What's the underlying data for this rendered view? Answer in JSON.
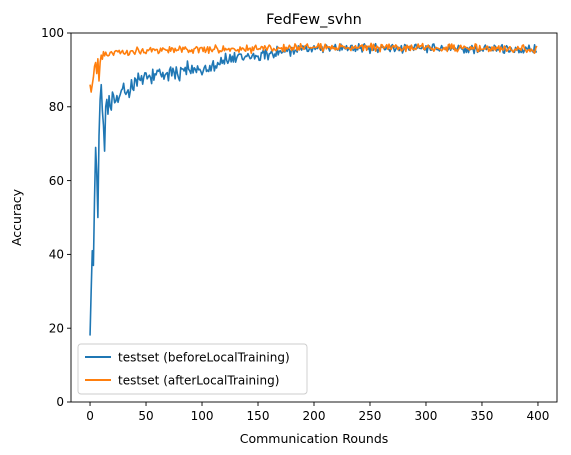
{
  "chart_data": {
    "type": "line",
    "title": "FedFew_svhn",
    "xlabel": "Communication Rounds",
    "ylabel": "Accuracy",
    "xlim": [
      -17,
      417
    ],
    "ylim": [
      0,
      100
    ],
    "xticks": [
      0,
      50,
      100,
      150,
      200,
      250,
      300,
      350,
      400
    ],
    "yticks": [
      0,
      20,
      40,
      60,
      80,
      100
    ],
    "grid": false,
    "legend_position": "lower-left",
    "rounds": 400,
    "series": [
      {
        "name": "testset (beforeLocalTraining)",
        "color": "#1f77b4",
        "anchors": [
          [
            0,
            18
          ],
          [
            1,
            30
          ],
          [
            2,
            41
          ],
          [
            3,
            37
          ],
          [
            4,
            55
          ],
          [
            5,
            69
          ],
          [
            6,
            62
          ],
          [
            7,
            50
          ],
          [
            8,
            72
          ],
          [
            9,
            82
          ],
          [
            10,
            86
          ],
          [
            11,
            79
          ],
          [
            12,
            75
          ],
          [
            13,
            68
          ],
          [
            14,
            80
          ],
          [
            15,
            82
          ],
          [
            16,
            78
          ],
          [
            17,
            83
          ],
          [
            18,
            80
          ],
          [
            20,
            84
          ],
          [
            22,
            81
          ],
          [
            25,
            82
          ],
          [
            30,
            84
          ],
          [
            35,
            85
          ],
          [
            40,
            86
          ],
          [
            45,
            87
          ],
          [
            50,
            88
          ],
          [
            60,
            88
          ],
          [
            70,
            89
          ],
          [
            80,
            89
          ],
          [
            90,
            90
          ],
          [
            100,
            90.5
          ],
          [
            110,
            91.5
          ],
          [
            120,
            92.5
          ],
          [
            130,
            93
          ],
          [
            140,
            93.5
          ],
          [
            150,
            94
          ],
          [
            160,
            94.5
          ],
          [
            170,
            95
          ],
          [
            180,
            95
          ],
          [
            190,
            95.5
          ],
          [
            200,
            96
          ],
          [
            400,
            95.5
          ]
        ],
        "noise": [
          {
            "until": 20,
            "amp": 2.5
          },
          {
            "until": 100,
            "amp": 3.0
          },
          {
            "until": 180,
            "amp": 2.0
          },
          {
            "until": 400,
            "amp": 1.3
          }
        ]
      },
      {
        "name": "testset (afterLocalTraining)",
        "color": "#ff7f0e",
        "anchors": [
          [
            0,
            86
          ],
          [
            1,
            84
          ],
          [
            2,
            86
          ],
          [
            3,
            88
          ],
          [
            4,
            91
          ],
          [
            5,
            92
          ],
          [
            6,
            89
          ],
          [
            7,
            93
          ],
          [
            8,
            87
          ],
          [
            9,
            92
          ],
          [
            10,
            94
          ],
          [
            15,
            94
          ],
          [
            20,
            94.5
          ],
          [
            30,
            95
          ],
          [
            50,
            95.5
          ],
          [
            100,
            95.5
          ],
          [
            150,
            95.8
          ],
          [
            200,
            96
          ],
          [
            300,
            96
          ],
          [
            400,
            95.5
          ]
        ],
        "noise": [
          {
            "until": 20,
            "amp": 1.5
          },
          {
            "until": 400,
            "amp": 1.1
          }
        ]
      }
    ]
  }
}
